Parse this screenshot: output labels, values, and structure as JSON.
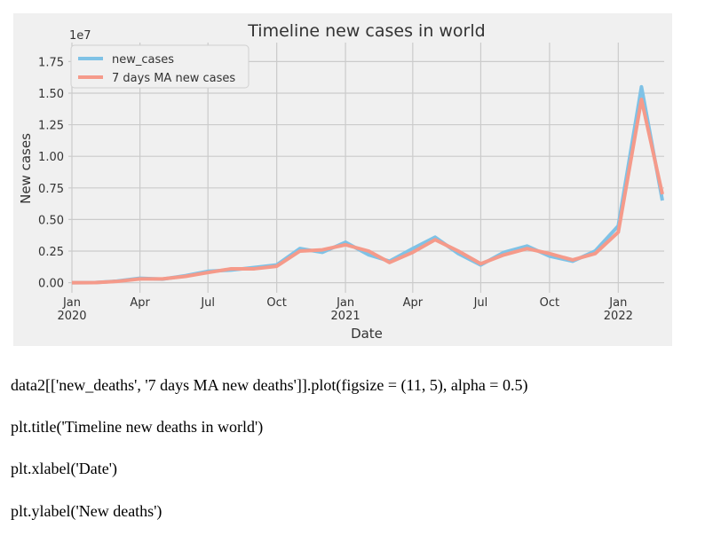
{
  "chart_data": {
    "type": "line",
    "title": "Timeline new cases in world",
    "xlabel": "Date",
    "ylabel": "New cases",
    "y_offset_label": "1e7",
    "x": [
      "2020-01",
      "2020-02",
      "2020-03",
      "2020-04",
      "2020-05",
      "2020-06",
      "2020-07",
      "2020-08",
      "2020-09",
      "2020-10",
      "2020-11",
      "2020-12",
      "2021-01",
      "2021-02",
      "2021-03",
      "2021-04",
      "2021-05",
      "2021-06",
      "2021-07",
      "2021-08",
      "2021-09",
      "2021-10",
      "2021-11",
      "2021-12",
      "2022-01",
      "2022-02",
      "2022-03"
    ],
    "series": [
      {
        "name": "new_cases",
        "color": "#7fc2e6",
        "values": [
          0,
          10000,
          120000,
          350000,
          280000,
          550000,
          900000,
          1000000,
          1200000,
          1400000,
          2700000,
          2400000,
          3200000,
          2200000,
          1700000,
          2700000,
          3600000,
          2300000,
          1400000,
          2400000,
          2900000,
          2100000,
          1700000,
          2500000,
          4500000,
          15500000,
          6500000
        ]
      },
      {
        "name": "7 days MA new cases",
        "color": "#f59a8a",
        "values": [
          0,
          10000,
          100000,
          300000,
          300000,
          500000,
          800000,
          1100000,
          1100000,
          1300000,
          2500000,
          2600000,
          3000000,
          2500000,
          1600000,
          2400000,
          3400000,
          2500000,
          1500000,
          2200000,
          2700000,
          2300000,
          1800000,
          2300000,
          4000000,
          14500000,
          7000000
        ]
      }
    ],
    "xlim": [
      "2020-01",
      "2022-03"
    ],
    "xticks": [
      {
        "value": "2020-01",
        "label": "Jan\n2020"
      },
      {
        "value": "2020-04",
        "label": "Apr"
      },
      {
        "value": "2020-07",
        "label": "Jul"
      },
      {
        "value": "2020-10",
        "label": "Oct"
      },
      {
        "value": "2021-01",
        "label": "Jan\n2021"
      },
      {
        "value": "2021-04",
        "label": "Apr"
      },
      {
        "value": "2021-07",
        "label": "Jul"
      },
      {
        "value": "2021-10",
        "label": "Oct"
      },
      {
        "value": "2022-01",
        "label": "Jan\n2022"
      }
    ],
    "ylim": [
      -800000,
      19000000
    ],
    "yticks": [
      {
        "value": 0,
        "label": "0.00"
      },
      {
        "value": 2500000,
        "label": "0.25"
      },
      {
        "value": 5000000,
        "label": "0.50"
      },
      {
        "value": 7500000,
        "label": "0.75"
      },
      {
        "value": 10000000,
        "label": "1.00"
      },
      {
        "value": 12500000,
        "label": "1.25"
      },
      {
        "value": 15000000,
        "label": "1.50"
      },
      {
        "value": 17500000,
        "label": "1.75"
      }
    ],
    "grid": true,
    "legend": "upper left"
  },
  "code_lines": [
    "data2[['new_deaths', '7 days MA new deaths']].plot(figsize = (11, 5), alpha = 0.5)",
    "plt.title('Timeline new deaths in world')",
    "plt.xlabel('Date')",
    "plt.ylabel('New deaths')"
  ]
}
